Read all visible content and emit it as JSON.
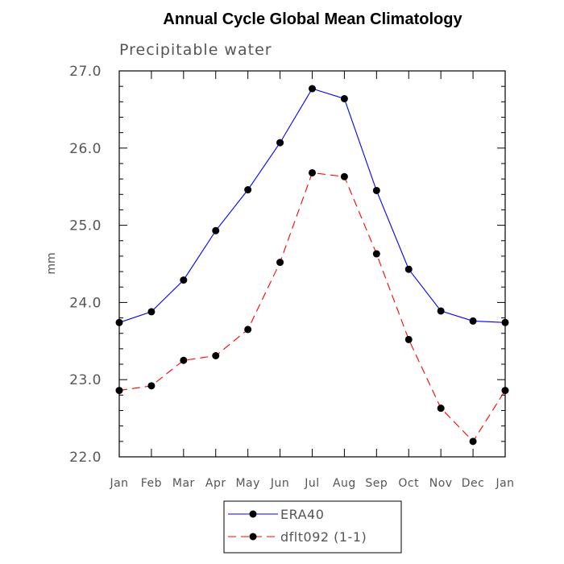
{
  "chart_data": {
    "type": "line",
    "title": "Annual Cycle Global Mean Climatology",
    "subtitle": "Precipitable water",
    "xlabel": "",
    "ylabel": "mm",
    "categories": [
      "Jan",
      "Feb",
      "Mar",
      "Apr",
      "May",
      "Jun",
      "Jul",
      "Aug",
      "Sep",
      "Oct",
      "Nov",
      "Dec",
      "Jan"
    ],
    "ylim": [
      22.0,
      27.0
    ],
    "yticks": [
      "22.0",
      "23.0",
      "24.0",
      "25.0",
      "26.0",
      "27.0"
    ],
    "grid": false,
    "legend_position": "bottom",
    "series": [
      {
        "name": "ERA40",
        "color": "#0000ff",
        "line_style": "solid",
        "marker": "filled-circle",
        "values": [
          23.74,
          23.88,
          24.29,
          24.93,
          25.46,
          26.07,
          26.77,
          26.64,
          25.45,
          24.43,
          23.89,
          23.76,
          23.74
        ]
      },
      {
        "name": "dflt092 (1-1)",
        "color": "#ff0000",
        "line_style": "dashed",
        "marker": "filled-circle",
        "values": [
          22.86,
          22.92,
          23.25,
          23.31,
          23.65,
          24.52,
          25.68,
          25.63,
          24.63,
          23.52,
          22.63,
          22.2,
          22.86
        ]
      }
    ]
  }
}
